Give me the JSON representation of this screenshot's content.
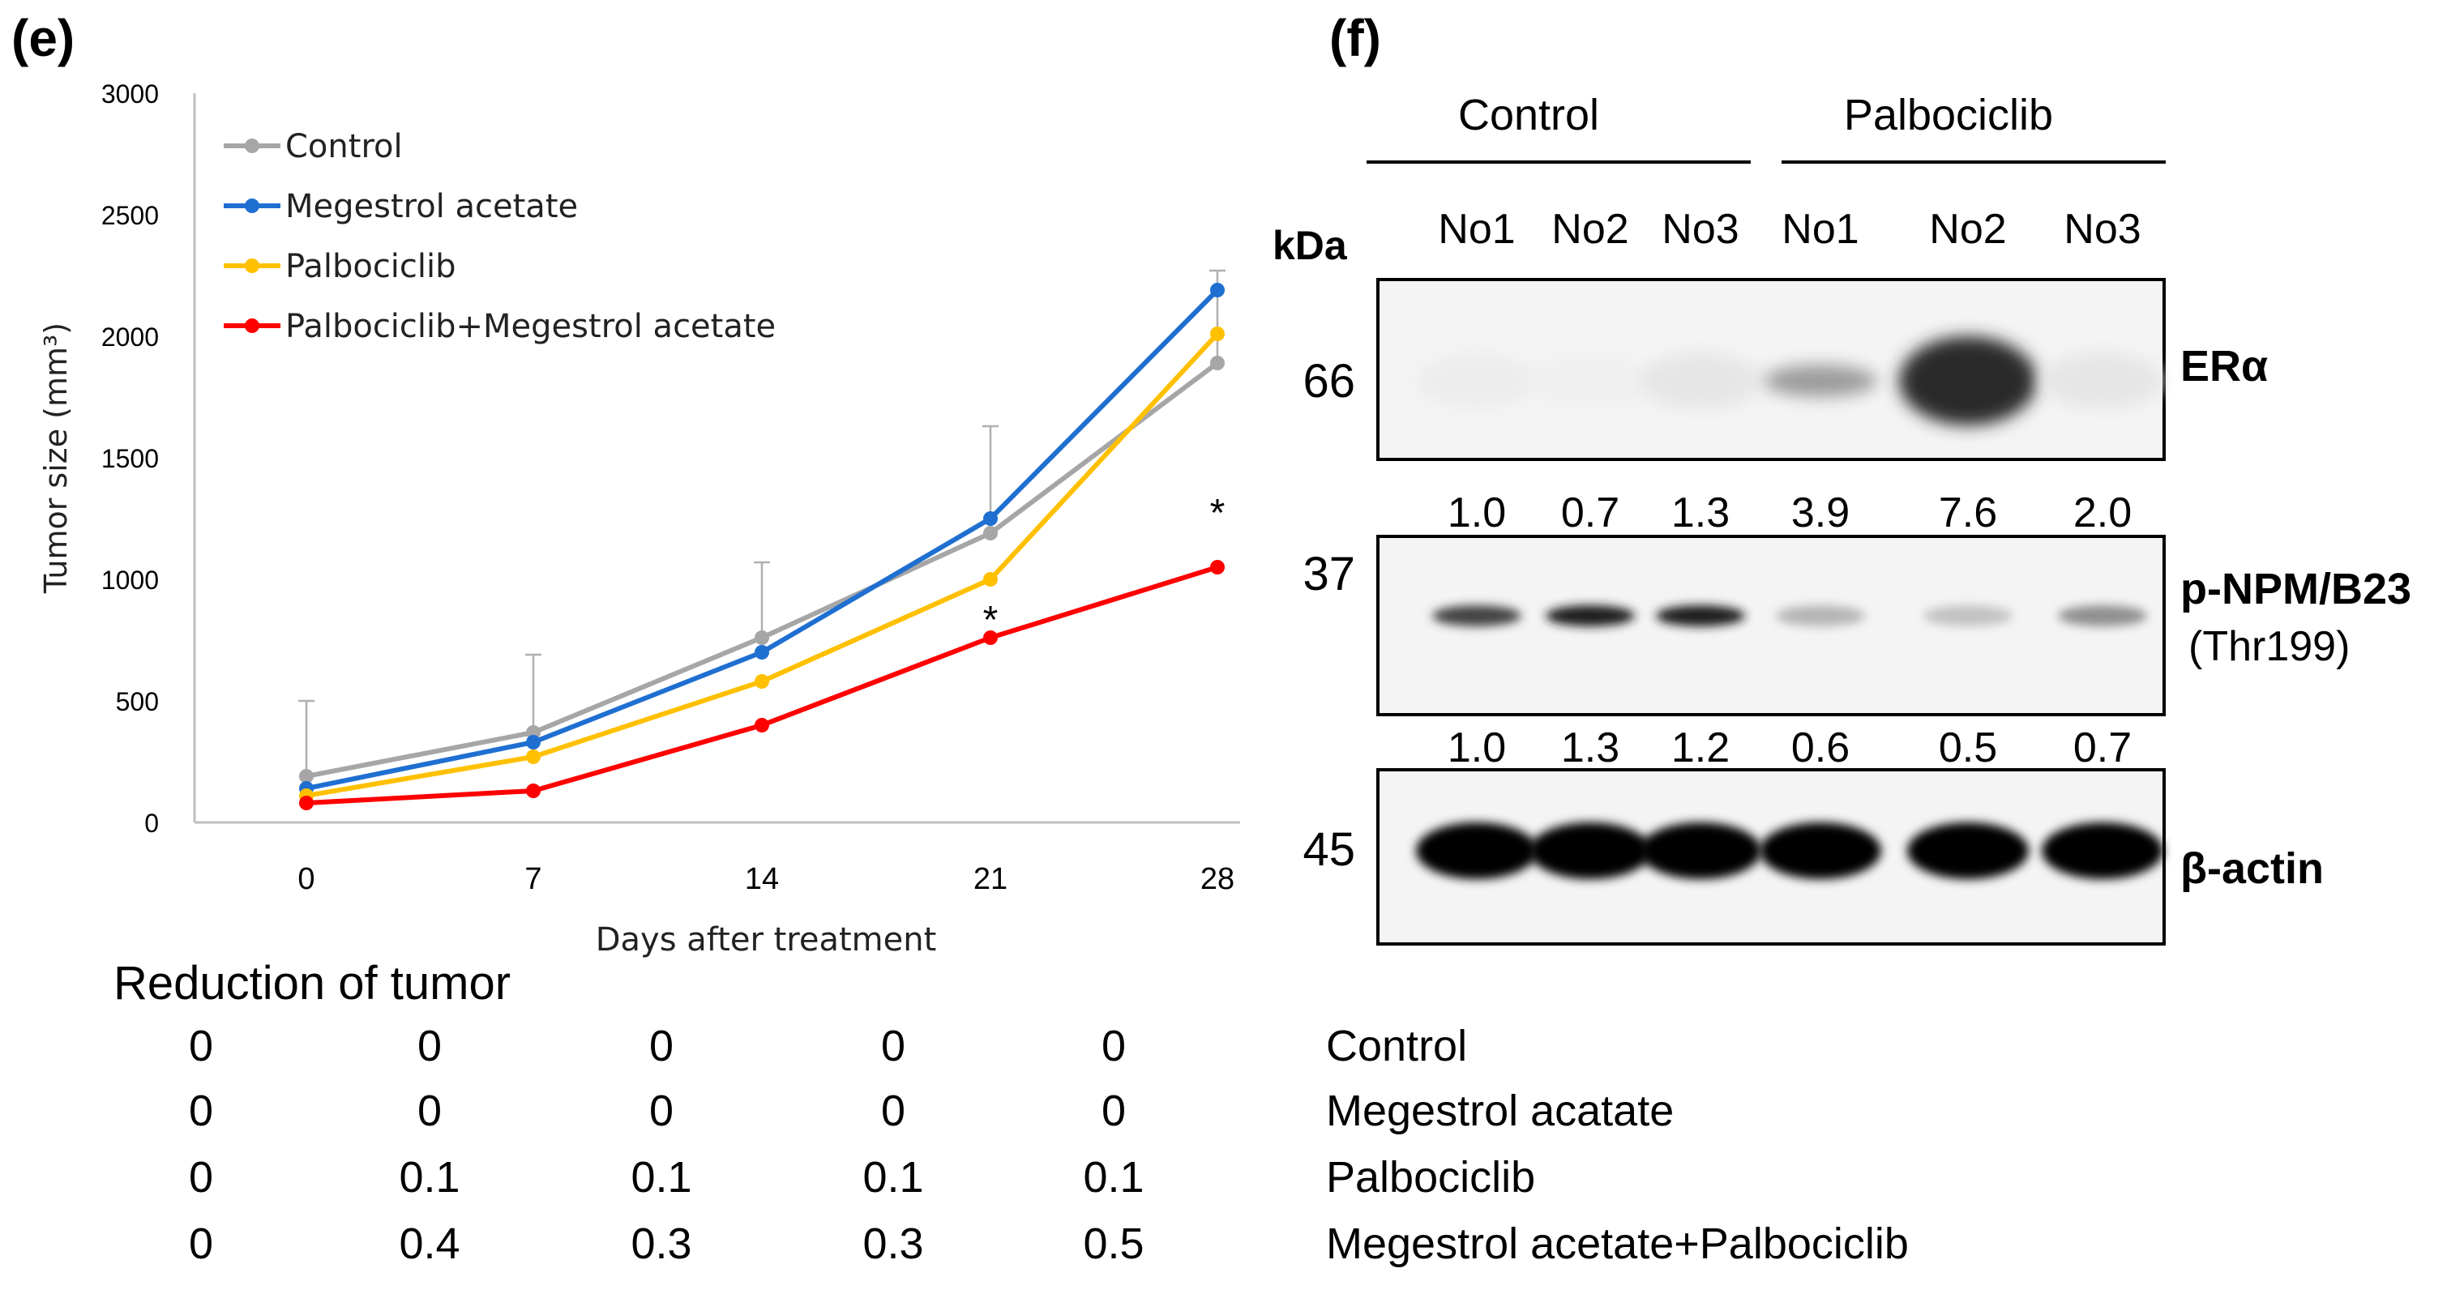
{
  "panel_e": {
    "letter": "(e)",
    "chart_data": {
      "type": "line",
      "title": "",
      "xlabel": "Days after treatment",
      "ylabel": "Tumor size (mm³)",
      "x": [
        0,
        7,
        14,
        21,
        28
      ],
      "x_tick_labels": [
        "0",
        "7",
        "14",
        "21",
        "28"
      ],
      "y_ticks": [
        0,
        500,
        1000,
        1500,
        2000,
        2500,
        3000
      ],
      "y_tick_labels": [
        "0",
        "500",
        "1000",
        "1500",
        "2000",
        "2500",
        "3000"
      ],
      "ylim": [
        0,
        3000
      ],
      "grid": false,
      "legend_position": "top-left",
      "series": [
        {
          "name": "Control",
          "color": "#a6a6a6",
          "values": [
            190,
            370,
            760,
            1190,
            1890
          ],
          "error": [
            310,
            320,
            310,
            440,
            380
          ]
        },
        {
          "name": "Megestrol acetate",
          "color": "#1f6fd1",
          "values": [
            140,
            330,
            700,
            1250,
            2190
          ],
          "error": [
            0,
            0,
            0,
            0,
            0
          ]
        },
        {
          "name": "Palbociclib",
          "color": "#ffc000",
          "values": [
            110,
            270,
            580,
            1000,
            2010
          ],
          "error": [
            0,
            0,
            0,
            0,
            0
          ]
        },
        {
          "name": "Palbociclib+Megestrol acetate",
          "color": "#ff0000",
          "values": [
            80,
            130,
            400,
            760,
            1050
          ],
          "error": [
            0,
            0,
            0,
            0,
            0
          ]
        }
      ],
      "annotations": [
        {
          "text": "*",
          "x": 21,
          "y": 860
        },
        {
          "text": "*",
          "x": 28,
          "y": 1300
        }
      ]
    },
    "reduction": {
      "title": "Reduction of tumor",
      "rows": [
        {
          "label": "Control",
          "values": [
            "0",
            "0",
            "0",
            "0",
            "0"
          ]
        },
        {
          "label": "Megestrol acatate",
          "values": [
            "0",
            "0",
            "0",
            "0",
            "0"
          ]
        },
        {
          "label": "Palbociclib",
          "values": [
            "0",
            "0.1",
            "0.1",
            "0.1",
            "0.1"
          ]
        },
        {
          "label": "Megestrol acetate+Palbociclib",
          "values": [
            "0",
            "0.4",
            "0.3",
            "0.3",
            "0.5"
          ]
        }
      ]
    }
  },
  "panel_f": {
    "letter": "(f)",
    "groups": [
      "Control",
      "Palbociclib"
    ],
    "kda_label": "kDa",
    "lanes": [
      "No1",
      "No2",
      "No3",
      "No1",
      "No2",
      "No3"
    ],
    "blots": [
      {
        "name": "ERα",
        "name2": "",
        "kda": "66",
        "quant": [
          "1.0",
          "0.7",
          "1.3",
          "3.9",
          "7.6",
          "2.0"
        ],
        "intensity": [
          0.03,
          0.02,
          0.06,
          0.35,
          0.8,
          0.06
        ]
      },
      {
        "name": "p-NPM/B23",
        "name2": "(Thr199)",
        "kda": "37",
        "quant": [
          "1.0",
          "1.3",
          "1.2",
          "0.6",
          "0.5",
          "0.7"
        ],
        "intensity": [
          0.7,
          0.85,
          0.85,
          0.25,
          0.2,
          0.4
        ]
      },
      {
        "name": "β-actin",
        "name2": "",
        "kda": "45",
        "quant": [],
        "intensity": [
          1,
          1,
          1,
          1,
          1,
          1
        ]
      }
    ]
  }
}
